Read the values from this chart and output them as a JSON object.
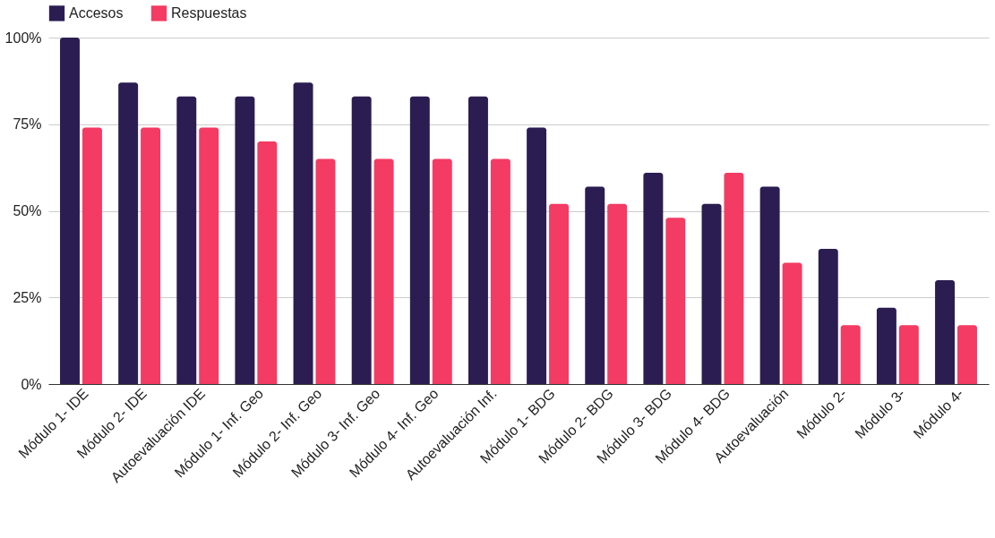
{
  "chart_data": {
    "type": "bar",
    "categories": [
      "Módulo 1- IDE",
      "Módulo 2- IDE",
      "Autoevaluación IDE",
      "Módulo 1- Inf. Geo",
      "Módulo 2- Inf. Geo",
      "Módulo 3- Inf. Geo",
      "Módulo 4- Inf. Geo",
      "Autoevaluación Inf.",
      "Módulo 1- BDG",
      "Módulo 2- BDG",
      "Módulo 3- BDG",
      "Módulo 4- BDG",
      "Autoevaluación",
      "Módulo 2-",
      "Módulo 3-",
      "Módulo 4-"
    ],
    "series": [
      {
        "name": "Accesos",
        "color": "#2b1d52",
        "values": [
          100,
          87,
          83,
          83,
          87,
          83,
          83,
          83,
          74,
          57,
          61,
          52,
          57,
          39,
          22,
          30
        ]
      },
      {
        "name": "Respuestas",
        "color": "#f43b63",
        "values": [
          74,
          74,
          74,
          70,
          65,
          65,
          65,
          65,
          52,
          52,
          48,
          61,
          35,
          17,
          17,
          17
        ]
      }
    ],
    "ylim": [
      0,
      100
    ],
    "yticks": [
      {
        "value": 0,
        "label": "0%"
      },
      {
        "value": 25,
        "label": "25%"
      },
      {
        "value": 50,
        "label": "50%"
      },
      {
        "value": 75,
        "label": "75%"
      },
      {
        "value": 100,
        "label": "100%"
      }
    ],
    "grid": "y",
    "legend": "top"
  }
}
